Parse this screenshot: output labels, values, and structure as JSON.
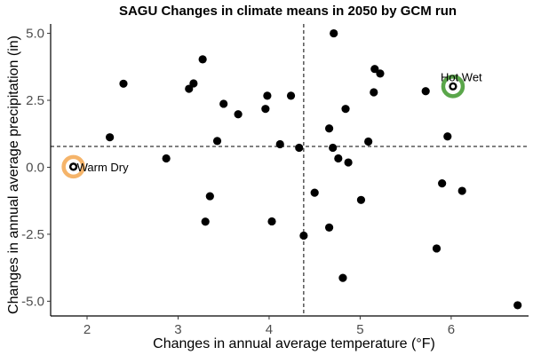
{
  "chart_data": {
    "type": "scatter",
    "title": "SAGU Changes in climate means in 2050 by GCM run",
    "xlabel": "Changes in annual average temperature (°F)",
    "ylabel": "Changes in annual average precipitation (in)",
    "xlim": [
      1.6,
      6.85
    ],
    "ylim": [
      -5.55,
      5.35
    ],
    "x_ticks": [
      2,
      3,
      4,
      5,
      6
    ],
    "x_tick_labels": [
      "2",
      "3",
      "4",
      "5",
      "6"
    ],
    "y_ticks": [
      -5,
      -2.5,
      0,
      2.5,
      5
    ],
    "y_tick_labels": [
      "-5.0",
      "-2.5",
      "0.0",
      "2.5",
      "5.0"
    ],
    "grid": false,
    "reference_lines": {
      "vertical_x": 4.38,
      "horizontal_y": 0.78
    },
    "points": [
      {
        "x": 1.85,
        "y": 0.02
      },
      {
        "x": 2.25,
        "y": 1.12
      },
      {
        "x": 2.4,
        "y": 3.12
      },
      {
        "x": 2.87,
        "y": 0.33
      },
      {
        "x": 3.12,
        "y": 2.93
      },
      {
        "x": 3.17,
        "y": 3.13
      },
      {
        "x": 3.27,
        "y": 4.03
      },
      {
        "x": 3.3,
        "y": -2.03
      },
      {
        "x": 3.35,
        "y": -1.08
      },
      {
        "x": 3.43,
        "y": 0.98
      },
      {
        "x": 3.5,
        "y": 2.37
      },
      {
        "x": 3.66,
        "y": 1.98
      },
      {
        "x": 3.96,
        "y": 2.18
      },
      {
        "x": 3.98,
        "y": 2.67
      },
      {
        "x": 4.03,
        "y": -2.02
      },
      {
        "x": 4.12,
        "y": 0.86
      },
      {
        "x": 4.24,
        "y": 2.67
      },
      {
        "x": 4.33,
        "y": 0.73
      },
      {
        "x": 4.38,
        "y": -2.55
      },
      {
        "x": 4.5,
        "y": -0.95
      },
      {
        "x": 4.66,
        "y": 1.45
      },
      {
        "x": 4.66,
        "y": -2.25
      },
      {
        "x": 4.7,
        "y": 0.73
      },
      {
        "x": 4.71,
        "y": 5.0
      },
      {
        "x": 4.76,
        "y": 0.33
      },
      {
        "x": 4.81,
        "y": -4.13
      },
      {
        "x": 4.84,
        "y": 2.18
      },
      {
        "x": 4.87,
        "y": 0.18
      },
      {
        "x": 5.01,
        "y": -1.22
      },
      {
        "x": 5.09,
        "y": 0.96
      },
      {
        "x": 5.15,
        "y": 2.8
      },
      {
        "x": 5.16,
        "y": 3.67
      },
      {
        "x": 5.22,
        "y": 3.5
      },
      {
        "x": 5.72,
        "y": 2.84
      },
      {
        "x": 5.84,
        "y": -3.03
      },
      {
        "x": 5.9,
        "y": -0.6
      },
      {
        "x": 5.96,
        "y": 1.15
      },
      {
        "x": 6.12,
        "y": -0.88
      },
      {
        "x": 6.73,
        "y": -5.15
      }
    ],
    "highlights": [
      {
        "label": "Warm Dry",
        "x": 1.85,
        "y": 0.02,
        "color": "#f5b46a",
        "label_position": "right"
      },
      {
        "label": "Hot Wet",
        "x": 6.02,
        "y": 3.02,
        "color": "#5aa64a",
        "label_position": "above"
      }
    ],
    "point_color": "#000000",
    "reference_line_color": "#000000"
  }
}
